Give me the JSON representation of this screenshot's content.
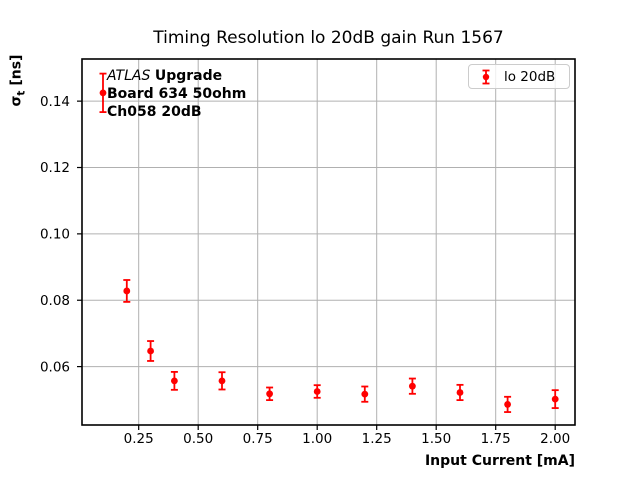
{
  "title": "Timing Resolution lo 20dB gain Run 1567",
  "annotation": {
    "experiment": "ATLAS",
    "experiment_suffix": "Upgrade",
    "board": "Board 634 50ohm",
    "channel": "Ch058 20dB"
  },
  "legend": {
    "label": "lo 20dB",
    "marker_color": "#ff0000"
  },
  "axes": {
    "x_label": "Input Current [mA]",
    "y_label_symbol": "σ",
    "y_label_subscript": "t",
    "y_label_unit": "[ns]",
    "x_tick_labels": [
      "0.25",
      "0.50",
      "0.75",
      "1.00",
      "1.25",
      "1.50",
      "1.75",
      "2.00"
    ],
    "y_tick_labels": [
      "0.06",
      "0.08",
      "0.10",
      "0.12",
      "0.14"
    ]
  },
  "colors": {
    "series": "#ff0000",
    "grid": "#b0b0b0",
    "frame": "#000000",
    "legend_border": "#cccccc"
  },
  "chart_data": {
    "type": "scatter",
    "title": "Timing Resolution lo 20dB gain Run 1567",
    "xlabel": "Input Current [mA]",
    "ylabel": "σ_t [ns]",
    "xlim": [
      0.0118,
      2.0832
    ],
    "ylim": [
      0.0424,
      0.1527
    ],
    "x_ticks": [
      0.25,
      0.5,
      0.75,
      1.0,
      1.25,
      1.5,
      1.75,
      2.0
    ],
    "y_ticks": [
      0.06,
      0.08,
      0.1,
      0.12,
      0.14
    ],
    "grid": true,
    "legend_position": "upper right",
    "series": [
      {
        "name": "lo 20dB",
        "color": "#ff0000",
        "marker": "circle-with-errorbar",
        "x": [
          0.1,
          0.2,
          0.3,
          0.4,
          0.6,
          0.8,
          1.0,
          1.2,
          1.4,
          1.6,
          1.8,
          2.0
        ],
        "y": [
          0.1425,
          0.0828,
          0.0647,
          0.0557,
          0.0557,
          0.0518,
          0.0525,
          0.0517,
          0.0541,
          0.0522,
          0.0486,
          0.0502
        ],
        "yerr": [
          0.0058,
          0.0033,
          0.003,
          0.0027,
          0.0026,
          0.0019,
          0.0019,
          0.0023,
          0.0023,
          0.0023,
          0.0023,
          0.0027
        ]
      }
    ]
  }
}
